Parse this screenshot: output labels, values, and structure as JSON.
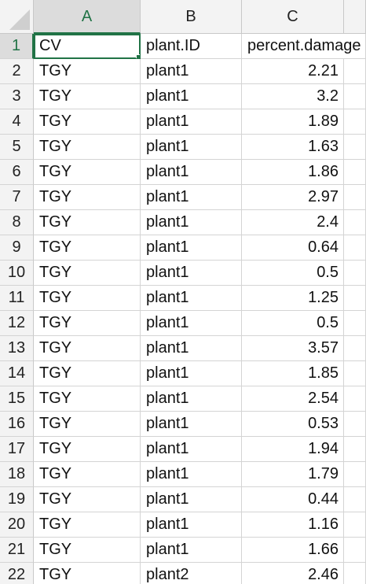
{
  "sheet": {
    "columns": [
      "A",
      "B",
      "C"
    ],
    "active_column": "A",
    "active_row": "1",
    "rows": [
      {
        "num": "1",
        "a": "CV",
        "b": "plant.ID",
        "c": "percent.damage"
      },
      {
        "num": "2",
        "a": "TGY",
        "b": "plant1",
        "c": "2.21"
      },
      {
        "num": "3",
        "a": "TGY",
        "b": "plant1",
        "c": "3.2"
      },
      {
        "num": "4",
        "a": "TGY",
        "b": "plant1",
        "c": "1.89"
      },
      {
        "num": "5",
        "a": "TGY",
        "b": "plant1",
        "c": "1.63"
      },
      {
        "num": "6",
        "a": "TGY",
        "b": "plant1",
        "c": "1.86"
      },
      {
        "num": "7",
        "a": "TGY",
        "b": "plant1",
        "c": "2.97"
      },
      {
        "num": "8",
        "a": "TGY",
        "b": "plant1",
        "c": "2.4"
      },
      {
        "num": "9",
        "a": "TGY",
        "b": "plant1",
        "c": "0.64"
      },
      {
        "num": "10",
        "a": "TGY",
        "b": "plant1",
        "c": "0.5"
      },
      {
        "num": "11",
        "a": "TGY",
        "b": "plant1",
        "c": "1.25"
      },
      {
        "num": "12",
        "a": "TGY",
        "b": "plant1",
        "c": "0.5"
      },
      {
        "num": "13",
        "a": "TGY",
        "b": "plant1",
        "c": "3.57"
      },
      {
        "num": "14",
        "a": "TGY",
        "b": "plant1",
        "c": "1.85"
      },
      {
        "num": "15",
        "a": "TGY",
        "b": "plant1",
        "c": "2.54"
      },
      {
        "num": "16",
        "a": "TGY",
        "b": "plant1",
        "c": "0.53"
      },
      {
        "num": "17",
        "a": "TGY",
        "b": "plant1",
        "c": "1.94"
      },
      {
        "num": "18",
        "a": "TGY",
        "b": "plant1",
        "c": "1.79"
      },
      {
        "num": "19",
        "a": "TGY",
        "b": "plant1",
        "c": "0.44"
      },
      {
        "num": "20",
        "a": "TGY",
        "b": "plant1",
        "c": "1.16"
      },
      {
        "num": "21",
        "a": "TGY",
        "b": "plant1",
        "c": "1.66"
      },
      {
        "num": "22",
        "a": "TGY",
        "b": "plant2",
        "c": "2.46"
      }
    ]
  }
}
